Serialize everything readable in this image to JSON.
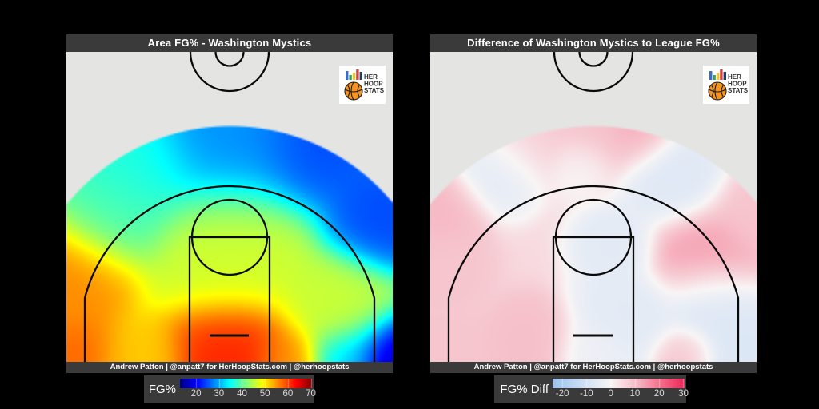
{
  "page": {
    "background": "#000000",
    "panel_color": "#3a3a3a",
    "court_color": "#e4e4e2",
    "line_color": "#0a0a0a"
  },
  "logo": {
    "text_lines": [
      "HER",
      "HOOP",
      "STATS"
    ],
    "bar_colors": [
      "#3a6bc9",
      "#2fa05f",
      "#f2c430",
      "#d94040",
      "#1d3f66"
    ],
    "ball_color": "#f5941e",
    "text_color": "#2f2f2f"
  },
  "chart_data": [
    {
      "type": "heatmap",
      "title": "Area FG% - Washington Mystics",
      "footer": "Andrew Patton | @anpatt7 for HerHoopStats.com | @herhoopstats",
      "legend_label": "FG%",
      "ticks": [
        20,
        30,
        40,
        50,
        60,
        70
      ],
      "value_range": [
        13,
        70.5
      ],
      "colormap": [
        {
          "v": 13,
          "c": "#000085"
        },
        {
          "v": 20.5,
          "c": "#0000ff"
        },
        {
          "v": 34.5,
          "c": "#00ffff"
        },
        {
          "v": 49,
          "c": "#ffff00"
        },
        {
          "v": 63.5,
          "c": "#ff0000"
        },
        {
          "v": 70.5,
          "c": "#800000"
        }
      ],
      "field": {
        "base_value": 44,
        "base_weight": 0.04,
        "blobs": [
          {
            "x": 0.5,
            "y": 0.99,
            "v": 62,
            "s": 0.1
          },
          {
            "x": 0.02,
            "y": 1.0,
            "v": 58,
            "s": 0.08
          },
          {
            "x": 0.0,
            "y": 0.72,
            "v": 56,
            "s": 0.1
          },
          {
            "x": 0.22,
            "y": 1.0,
            "v": 52,
            "s": 0.07
          },
          {
            "x": 0.68,
            "y": 1.0,
            "v": 55,
            "s": 0.055
          },
          {
            "x": 0.85,
            "y": 1.0,
            "v": 33,
            "s": 0.06
          },
          {
            "x": 1.0,
            "y": 1.0,
            "v": 16,
            "s": 0.08
          },
          {
            "x": 0.97,
            "y": 0.53,
            "v": 24,
            "s": 0.09
          },
          {
            "x": 0.5,
            "y": 0.28,
            "v": 28,
            "s": 0.13
          },
          {
            "x": 0.76,
            "y": 0.3,
            "v": 24,
            "s": 0.1
          },
          {
            "x": 0.2,
            "y": 0.38,
            "v": 36,
            "s": 0.1
          },
          {
            "x": 0.5,
            "y": 0.63,
            "v": 46.5,
            "s": 0.12
          },
          {
            "x": 0.84,
            "y": 0.82,
            "v": 46,
            "s": 0.09
          },
          {
            "x": 0.12,
            "y": 0.52,
            "v": 39,
            "s": 0.09
          }
        ]
      }
    },
    {
      "type": "heatmap",
      "title": "Difference of Washington Mystics to League FG%",
      "footer": "Andrew Patton | @anpatt7 for HerHoopStats.com | @herhoopstats",
      "legend_label": "FG% Diff",
      "ticks": [
        -20,
        -10,
        0,
        10,
        20,
        30
      ],
      "value_range": [
        -24,
        30.5
      ],
      "colormap": [
        {
          "v": -24,
          "c": "#9cc3ee"
        },
        {
          "v": -10,
          "c": "#d3e2f5"
        },
        {
          "v": 0,
          "c": "#f8f5f5"
        },
        {
          "v": 10,
          "c": "#f6bfc9"
        },
        {
          "v": 20,
          "c": "#f4738e"
        },
        {
          "v": 30.5,
          "c": "#ee2657"
        }
      ],
      "field": {
        "base_value": 5,
        "base_weight": 0.035,
        "blobs": [
          {
            "x": 0.5,
            "y": 0.26,
            "v": 9,
            "s": 0.08
          },
          {
            "x": 0.63,
            "y": 0.25,
            "v": 13,
            "s": 0.06
          },
          {
            "x": 0.28,
            "y": 0.28,
            "v": 7,
            "s": 0.07
          },
          {
            "x": 0.2,
            "y": 0.37,
            "v": -6,
            "s": 0.07
          },
          {
            "x": 0.46,
            "y": 0.37,
            "v": -1,
            "s": 0.05
          },
          {
            "x": 0.74,
            "y": 0.4,
            "v": -7,
            "s": 0.08
          },
          {
            "x": 0.02,
            "y": 0.5,
            "v": 11,
            "s": 0.07
          },
          {
            "x": 0.03,
            "y": 0.7,
            "v": 9,
            "s": 0.07
          },
          {
            "x": 1.0,
            "y": 0.52,
            "v": 9,
            "s": 0.07
          },
          {
            "x": 0.56,
            "y": 0.62,
            "v": -6,
            "s": 0.06
          },
          {
            "x": 0.84,
            "y": 0.66,
            "v": 14,
            "s": 0.08
          },
          {
            "x": 0.86,
            "y": 0.81,
            "v": -8,
            "s": 0.07
          },
          {
            "x": 0.95,
            "y": 0.97,
            "v": -8,
            "s": 0.08
          },
          {
            "x": 0.6,
            "y": 0.85,
            "v": -6,
            "s": 0.08
          },
          {
            "x": 0.5,
            "y": 0.98,
            "v": -3,
            "s": 0.06
          },
          {
            "x": 0.3,
            "y": 0.94,
            "v": 10,
            "s": 0.07
          },
          {
            "x": 0.03,
            "y": 0.97,
            "v": 9,
            "s": 0.07
          },
          {
            "x": 0.78,
            "y": 0.98,
            "v": 9,
            "s": 0.05
          }
        ]
      }
    }
  ]
}
